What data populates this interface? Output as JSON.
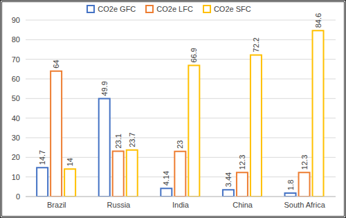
{
  "chart_data": {
    "type": "bar",
    "categories": [
      "Brazil",
      "Russia",
      "India",
      "China",
      "South Africa"
    ],
    "series": [
      {
        "name": "CO2e GFC",
        "color": "#4472c4",
        "values": [
          14.7,
          49.9,
          4.14,
          3.44,
          1.8
        ]
      },
      {
        "name": "CO2e LFC",
        "color": "#ed7d31",
        "values": [
          64,
          23.1,
          23,
          12.3,
          12.3
        ]
      },
      {
        "name": "CO2e SFC",
        "color": "#ffc000",
        "values": [
          14,
          23.7,
          66.9,
          72.2,
          84.6
        ]
      }
    ],
    "ylim": [
      0,
      90
    ],
    "yticks": [
      0,
      10,
      20,
      30,
      40,
      50,
      60,
      70,
      80,
      90
    ],
    "grid": true,
    "legend": "top",
    "data_labels": true
  }
}
